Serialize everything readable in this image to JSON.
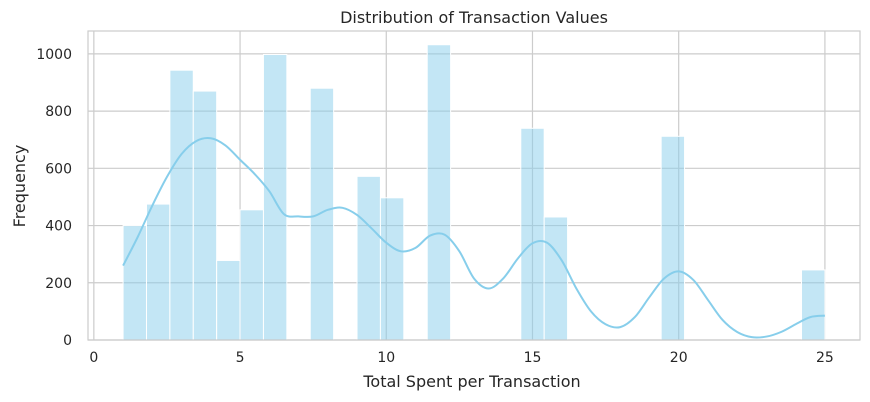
{
  "chart_data": {
    "type": "histogram",
    "title": "Distribution of Transaction Values",
    "xlabel": "Total Spent per Transaction",
    "ylabel": "Frequency",
    "xlim": [
      -0.2,
      26.2
    ],
    "ylim": [
      0,
      1080
    ],
    "xticks": [
      0,
      5,
      10,
      15,
      20,
      25
    ],
    "yticks": [
      0,
      200,
      400,
      600,
      800,
      1000
    ],
    "grid": true,
    "bar_color": "#87CEEB",
    "bins": [
      {
        "x0": 1.0,
        "x1": 1.8,
        "count": 400
      },
      {
        "x0": 1.8,
        "x1": 2.6,
        "count": 475
      },
      {
        "x0": 2.6,
        "x1": 3.4,
        "count": 943
      },
      {
        "x0": 3.4,
        "x1": 4.2,
        "count": 870
      },
      {
        "x0": 4.2,
        "x1": 5.0,
        "count": 278
      },
      {
        "x0": 5.0,
        "x1": 5.8,
        "count": 455
      },
      {
        "x0": 5.8,
        "x1": 6.6,
        "count": 998
      },
      {
        "x0": 6.6,
        "x1": 7.4,
        "count": 0
      },
      {
        "x0": 7.4,
        "x1": 8.2,
        "count": 880
      },
      {
        "x0": 8.2,
        "x1": 9.0,
        "count": 0
      },
      {
        "x0": 9.0,
        "x1": 9.8,
        "count": 572
      },
      {
        "x0": 9.8,
        "x1": 10.6,
        "count": 497
      },
      {
        "x0": 10.6,
        "x1": 11.4,
        "count": 0
      },
      {
        "x0": 11.4,
        "x1": 12.2,
        "count": 1032
      },
      {
        "x0": 12.2,
        "x1": 13.0,
        "count": 0
      },
      {
        "x0": 13.0,
        "x1": 13.8,
        "count": 0
      },
      {
        "x0": 13.8,
        "x1": 14.6,
        "count": 0
      },
      {
        "x0": 14.6,
        "x1": 15.4,
        "count": 740
      },
      {
        "x0": 15.4,
        "x1": 16.2,
        "count": 430
      },
      {
        "x0": 16.2,
        "x1": 17.0,
        "count": 0
      },
      {
        "x0": 17.0,
        "x1": 17.8,
        "count": 0
      },
      {
        "x0": 17.8,
        "x1": 18.6,
        "count": 0
      },
      {
        "x0": 18.6,
        "x1": 19.4,
        "count": 0
      },
      {
        "x0": 19.4,
        "x1": 20.2,
        "count": 712
      },
      {
        "x0": 20.2,
        "x1": 21.0,
        "count": 0
      },
      {
        "x0": 21.0,
        "x1": 21.8,
        "count": 0
      },
      {
        "x0": 21.8,
        "x1": 22.6,
        "count": 0
      },
      {
        "x0": 22.6,
        "x1": 23.4,
        "count": 0
      },
      {
        "x0": 23.4,
        "x1": 24.2,
        "count": 0
      },
      {
        "x0": 24.2,
        "x1": 25.0,
        "count": 245
      }
    ],
    "kde": {
      "x": [
        1.0,
        1.5,
        2.0,
        2.5,
        3.0,
        3.5,
        4.0,
        4.5,
        5.0,
        5.5,
        6.0,
        6.5,
        7.0,
        7.5,
        8.0,
        8.5,
        9.0,
        9.5,
        10.0,
        10.5,
        11.0,
        11.5,
        12.0,
        12.5,
        13.0,
        13.5,
        14.0,
        14.5,
        15.0,
        15.5,
        16.0,
        16.5,
        17.0,
        17.5,
        18.0,
        18.5,
        19.0,
        19.5,
        20.0,
        20.5,
        21.0,
        21.5,
        22.0,
        22.5,
        23.0,
        23.5,
        24.0,
        24.5,
        25.0
      ],
      "y": [
        260,
        360,
        470,
        570,
        650,
        695,
        705,
        680,
        630,
        580,
        520,
        440,
        432,
        432,
        455,
        462,
        437,
        390,
        340,
        310,
        322,
        365,
        368,
        310,
        215,
        180,
        215,
        285,
        338,
        340,
        278,
        180,
        100,
        55,
        45,
        80,
        150,
        215,
        240,
        210,
        140,
        70,
        28,
        10,
        12,
        28,
        55,
        80,
        85
      ]
    }
  }
}
